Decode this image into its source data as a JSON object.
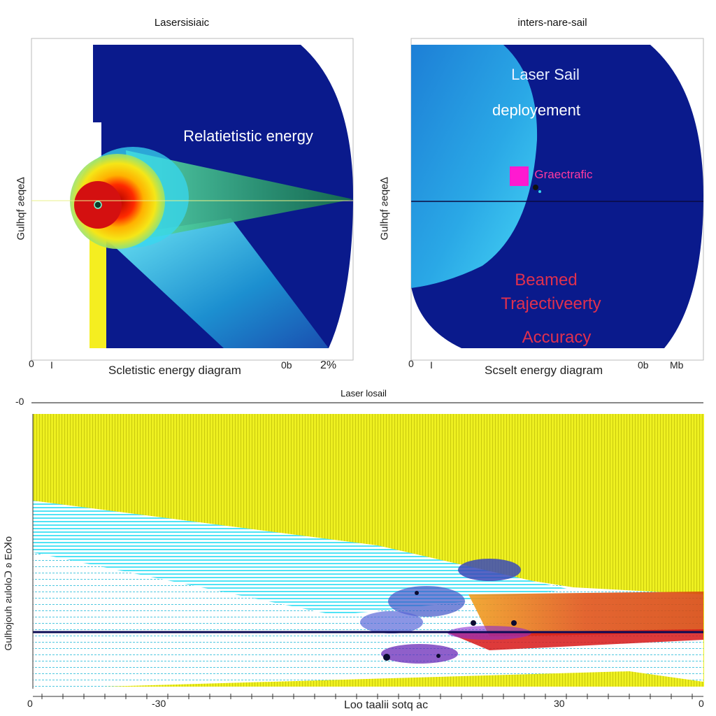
{
  "chart_data": [
    {
      "type": "heatmap",
      "title": "Lasersisiaic",
      "xlabel": "Scletistic energy diagram",
      "ylabel": "Gulhqf ƨeqe∆",
      "x_ticks": [
        "0",
        "I",
        "0b",
        "2%"
      ],
      "annotations": [
        "Relatietistic energy"
      ],
      "colors": {
        "background": "#0a1a8c",
        "hot": "#e01010",
        "warm": "#f5e617",
        "cool": "#37d7f0",
        "beam": "#f5ee20"
      }
    },
    {
      "type": "heatmap",
      "title": "inters-nare-sail",
      "xlabel": "Scselt energy diagram",
      "ylabel": "Gulhqf ƨeqe∆",
      "x_ticks": [
        "0",
        "I",
        "0b",
        "Mb"
      ],
      "annotations": [
        "Laser Sail",
        "deployement",
        "Graectrafic",
        "Beamed",
        "Trajectiveerty",
        "Accuracy"
      ],
      "colors": {
        "background": "#0a1a8c",
        "region": "#2aa8e6",
        "marker": "#ff1ad0",
        "text_red": "#e0304e"
      }
    },
    {
      "type": "heatmap",
      "title": "Laser losail",
      "xlabel": "Loo taalii sotq ac",
      "ylabel": "Gulhojouh ƨuloloᑐ ʚ Eoꓘo",
      "x_ticks": [
        "0",
        "-30",
        "30",
        "0"
      ],
      "y_ticks": [
        "-0"
      ],
      "colors": {
        "field": "#eef020",
        "stream": "#4fe3f5",
        "dots": "#2b35a8",
        "accent": "#8a2bd0",
        "warm": "#e0541a",
        "line": "#0b0b55"
      }
    }
  ]
}
